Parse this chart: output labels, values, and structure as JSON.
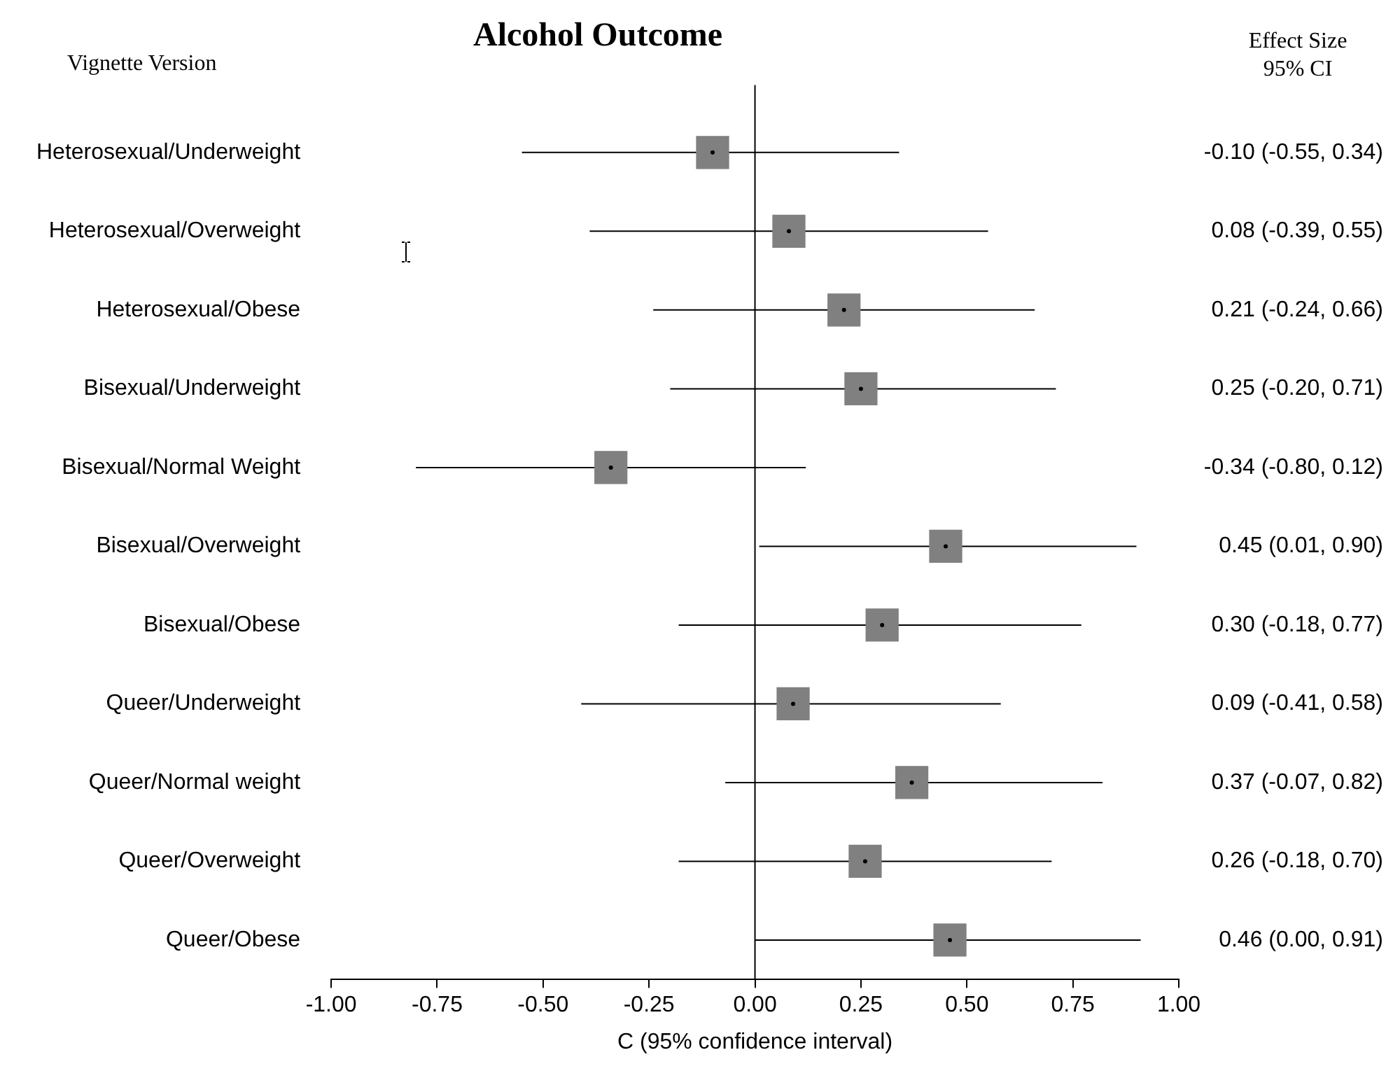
{
  "chart_data": {
    "type": "scatter",
    "orientation": "horizontal",
    "title": "Alcohol Outcome",
    "ylabel": "Vignette Version",
    "xlabel": "C (95% confidence interval)",
    "categories": [
      "Heterosexual/Underweight",
      "Heterosexual/Overweight",
      "Heterosexual/Obese",
      "Bisexual/Underweight",
      "Bisexual/Normal Weight",
      "Bisexual/Overweight",
      "Bisexual/Obese",
      "Queer/Underweight",
      "Queer/Normal weight",
      "Queer/Overweight",
      "Queer/Obese"
    ],
    "values": [
      -0.1,
      0.08,
      0.21,
      0.25,
      -0.34,
      0.45,
      0.3,
      0.09,
      0.37,
      0.26,
      0.46
    ],
    "errors": [
      [
        -0.55,
        0.34
      ],
      [
        -0.39,
        0.55
      ],
      [
        -0.24,
        0.66
      ],
      [
        -0.2,
        0.71
      ],
      [
        -0.8,
        0.12
      ],
      [
        0.01,
        0.9
      ],
      [
        -0.18,
        0.77
      ],
      [
        -0.41,
        0.58
      ],
      [
        -0.07,
        0.82
      ],
      [
        -0.18,
        0.7
      ],
      [
        0.0,
        0.91
      ]
    ],
    "value_labels": [
      "-0.10 (-0.55, 0.34)",
      "0.08 (-0.39, 0.55)",
      "0.21 (-0.24, 0.66)",
      "0.25 (-0.20, 0.71)",
      "-0.34 (-0.80, 0.12)",
      "0.45 (0.01, 0.90)",
      "0.30 (-0.18, 0.77)",
      "0.09 (-0.41, 0.58)",
      "0.37 (-0.07, 0.82)",
      "0.26 (-0.18, 0.70)",
      "0.46 (0.00, 0.91)"
    ],
    "color": "#808080",
    "marker": "square",
    "xlim": [
      -1,
      1
    ],
    "xticks": [
      {
        "value": -1,
        "label": "-1.00"
      },
      {
        "value": -0.75,
        "label": "-0.75"
      },
      {
        "value": -0.5,
        "label": "-0.50"
      },
      {
        "value": -0.25,
        "label": "-0.25"
      },
      {
        "value": 0,
        "label": "0.00"
      },
      {
        "value": 0.25,
        "label": "0.25"
      },
      {
        "value": 0.5,
        "label": "0.50"
      },
      {
        "value": 0.75,
        "label": "0.75"
      },
      {
        "value": 1,
        "label": "1.00"
      }
    ],
    "ref_lines": [
      {
        "axis": "x",
        "value": 0,
        "color": "#000000"
      }
    ],
    "annotations": [
      "Effect Size\n95% CI"
    ],
    "grid": false
  }
}
